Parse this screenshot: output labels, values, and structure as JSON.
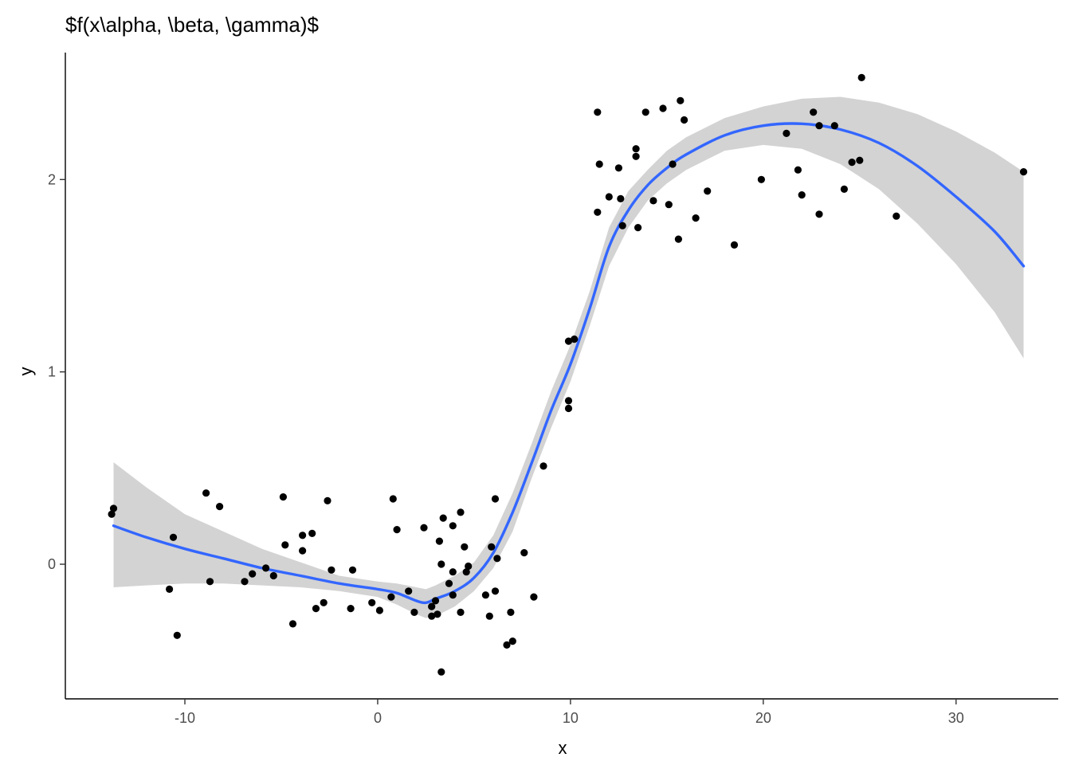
{
  "chart_data": {
    "type": "scatter",
    "title": "$f(x\\alpha, \\beta, \\gamma)$",
    "xlabel": "x",
    "ylabel": "y",
    "xlim": [
      -16.2,
      35.3
    ],
    "ylim": [
      -0.7,
      2.66
    ],
    "x_ticks": [
      -10,
      0,
      10,
      20,
      30
    ],
    "x_tick_labels": [
      "-10",
      "0",
      "10",
      "20",
      "30"
    ],
    "y_ticks": [
      0,
      1,
      2
    ],
    "y_tick_labels": [
      "0",
      "1",
      "2"
    ],
    "grid": false,
    "colors": {
      "points": "#000000",
      "smooth_line": "#3366FF",
      "ribbon": "#d3d3d3"
    },
    "points": [
      [
        -13.7,
        0.29
      ],
      [
        -13.8,
        0.26
      ],
      [
        -10.8,
        -0.13
      ],
      [
        -10.6,
        0.14
      ],
      [
        -10.4,
        -0.37
      ],
      [
        -8.9,
        0.37
      ],
      [
        -8.7,
        -0.09
      ],
      [
        -8.2,
        0.3
      ],
      [
        -6.9,
        -0.09
      ],
      [
        -6.5,
        -0.05
      ],
      [
        -5.8,
        -0.02
      ],
      [
        -5.4,
        -0.06
      ],
      [
        -4.9,
        0.35
      ],
      [
        -4.8,
        0.1
      ],
      [
        -4.4,
        -0.31
      ],
      [
        -3.9,
        0.15
      ],
      [
        -3.9,
        0.07
      ],
      [
        -3.4,
        0.16
      ],
      [
        -3.2,
        -0.23
      ],
      [
        -2.8,
        -0.2
      ],
      [
        -2.6,
        0.33
      ],
      [
        -2.4,
        -0.03
      ],
      [
        -1.4,
        -0.23
      ],
      [
        -1.3,
        -0.03
      ],
      [
        -0.3,
        -0.2
      ],
      [
        0.1,
        -0.24
      ],
      [
        0.7,
        -0.17
      ],
      [
        0.8,
        0.34
      ],
      [
        1.0,
        0.18
      ],
      [
        1.6,
        -0.14
      ],
      [
        1.9,
        -0.25
      ],
      [
        2.4,
        0.19
      ],
      [
        2.8,
        -0.22
      ],
      [
        2.8,
        -0.27
      ],
      [
        3.0,
        -0.19
      ],
      [
        3.1,
        -0.26
      ],
      [
        3.2,
        0.12
      ],
      [
        3.3,
        0.0
      ],
      [
        3.4,
        0.24
      ],
      [
        3.3,
        -0.56
      ],
      [
        3.7,
        -0.1
      ],
      [
        3.9,
        -0.16
      ],
      [
        3.9,
        -0.04
      ],
      [
        3.9,
        0.2
      ],
      [
        4.3,
        0.27
      ],
      [
        4.3,
        -0.25
      ],
      [
        4.5,
        0.09
      ],
      [
        4.6,
        -0.04
      ],
      [
        4.7,
        -0.01
      ],
      [
        5.6,
        -0.16
      ],
      [
        5.8,
        -0.27
      ],
      [
        5.9,
        0.09
      ],
      [
        6.1,
        0.34
      ],
      [
        6.1,
        -0.14
      ],
      [
        6.2,
        0.03
      ],
      [
        6.7,
        -0.42
      ],
      [
        6.9,
        -0.25
      ],
      [
        7.0,
        -0.4
      ],
      [
        7.6,
        0.06
      ],
      [
        8.1,
        -0.17
      ],
      [
        8.6,
        0.51
      ],
      [
        9.9,
        0.85
      ],
      [
        9.9,
        0.81
      ],
      [
        9.9,
        1.16
      ],
      [
        10.2,
        1.17
      ],
      [
        11.4,
        2.35
      ],
      [
        11.5,
        2.08
      ],
      [
        11.4,
        1.83
      ],
      [
        12.0,
        1.91
      ],
      [
        12.5,
        2.06
      ],
      [
        12.6,
        1.9
      ],
      [
        12.7,
        1.76
      ],
      [
        13.4,
        2.16
      ],
      [
        13.4,
        2.12
      ],
      [
        13.5,
        1.75
      ],
      [
        13.9,
        2.35
      ],
      [
        14.3,
        1.89
      ],
      [
        14.8,
        2.37
      ],
      [
        15.1,
        1.87
      ],
      [
        15.3,
        2.08
      ],
      [
        15.6,
        1.69
      ],
      [
        15.7,
        2.41
      ],
      [
        15.9,
        2.31
      ],
      [
        16.5,
        1.8
      ],
      [
        17.1,
        1.94
      ],
      [
        18.5,
        1.66
      ],
      [
        19.9,
        2.0
      ],
      [
        21.2,
        2.24
      ],
      [
        21.8,
        2.05
      ],
      [
        22.0,
        1.92
      ],
      [
        22.6,
        2.35
      ],
      [
        22.9,
        2.28
      ],
      [
        22.9,
        1.82
      ],
      [
        23.7,
        2.28
      ],
      [
        24.2,
        1.95
      ],
      [
        24.6,
        2.09
      ],
      [
        25.0,
        2.1
      ],
      [
        25.1,
        2.53
      ],
      [
        26.9,
        1.81
      ],
      [
        33.5,
        2.04
      ]
    ],
    "smooth": {
      "x": [
        -13.7,
        -12,
        -10,
        -8,
        -6,
        -4,
        -2,
        0,
        1,
        2,
        2.5,
        3,
        4,
        5,
        6,
        7,
        8,
        9,
        10,
        11,
        12,
        13,
        14,
        15,
        16,
        18,
        20,
        22,
        24,
        26,
        28,
        30,
        32,
        33.5
      ],
      "y": [
        0.2,
        0.14,
        0.08,
        0.03,
        -0.02,
        -0.06,
        -0.1,
        -0.13,
        -0.15,
        -0.19,
        -0.2,
        -0.18,
        -0.14,
        -0.07,
        0.06,
        0.27,
        0.53,
        0.8,
        1.04,
        1.33,
        1.65,
        1.84,
        1.97,
        2.06,
        2.13,
        2.23,
        2.28,
        2.29,
        2.26,
        2.19,
        2.07,
        1.91,
        1.73,
        1.55
      ],
      "lower": [
        -0.12,
        -0.11,
        -0.1,
        -0.1,
        -0.11,
        -0.12,
        -0.14,
        -0.17,
        -0.21,
        -0.26,
        -0.28,
        -0.27,
        -0.22,
        -0.14,
        -0.02,
        0.17,
        0.45,
        0.71,
        0.95,
        1.24,
        1.55,
        1.75,
        1.89,
        1.98,
        2.05,
        2.15,
        2.18,
        2.16,
        2.08,
        1.95,
        1.77,
        1.56,
        1.31,
        1.07
      ],
      "upper": [
        0.53,
        0.4,
        0.26,
        0.17,
        0.08,
        0.01,
        -0.06,
        -0.09,
        -0.1,
        -0.12,
        -0.13,
        -0.11,
        -0.06,
        0.01,
        0.15,
        0.37,
        0.63,
        0.9,
        1.14,
        1.42,
        1.75,
        1.94,
        2.05,
        2.15,
        2.22,
        2.32,
        2.38,
        2.42,
        2.43,
        2.4,
        2.34,
        2.25,
        2.14,
        2.04
      ]
    }
  }
}
